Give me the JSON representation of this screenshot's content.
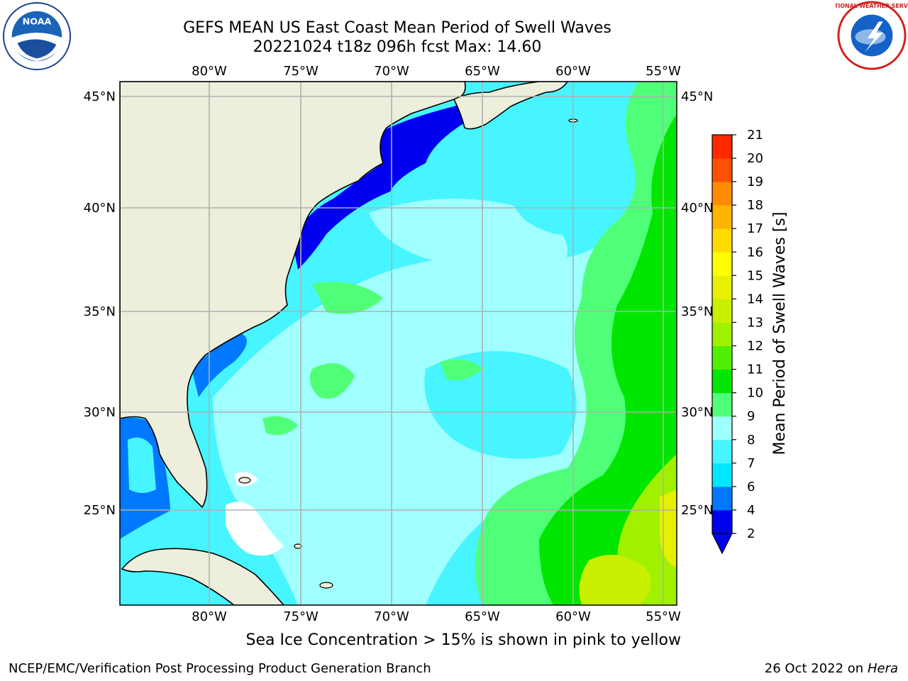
{
  "header": {
    "title_line1": "GEFS MEAN US East Coast Mean Period of Swell Waves",
    "title_line2": "20221024 t18z 096h fcst   Max: 14.60",
    "noaa_logo_text": "NOAA",
    "nws_logo_text": "NATIONAL WEATHER SERVICE"
  },
  "map": {
    "lon_ticks": [
      "80°W",
      "75°W",
      "70°W",
      "65°W",
      "60°W",
      "55°W"
    ],
    "lat_ticks": [
      "45°N",
      "40°N",
      "35°N",
      "30°N",
      "25°N"
    ],
    "colors": {
      "land": "#eeeedc",
      "grid": "#b0b0b0",
      "coast": "#000000"
    }
  },
  "colorbar": {
    "title": "Mean Period of Swell Waves [s]",
    "levels": [
      "2",
      "4",
      "6",
      "7",
      "8",
      "9",
      "10",
      "11",
      "12",
      "13",
      "14",
      "15",
      "16",
      "17",
      "18",
      "19",
      "20",
      "21"
    ],
    "colors": [
      "#0000f0",
      "#0078ff",
      "#00e8ff",
      "#46f5ff",
      "#a0ffff",
      "#50ff78",
      "#00e600",
      "#50f000",
      "#a0f000",
      "#c8f000",
      "#e6f000",
      "#ffff00",
      "#ffdc00",
      "#ffb400",
      "#ff8c00",
      "#ff5000",
      "#ff2800",
      "#ff0000"
    ],
    "under_color": "#0000f0"
  },
  "footer": {
    "note": "Sea Ice Concentration > 15% is shown in pink to yellow",
    "credit": "NCEP/EMC/Verification Post Processing Product Generation Branch",
    "date_prefix": "26 Oct 2022 on ",
    "machine": "Hera"
  }
}
